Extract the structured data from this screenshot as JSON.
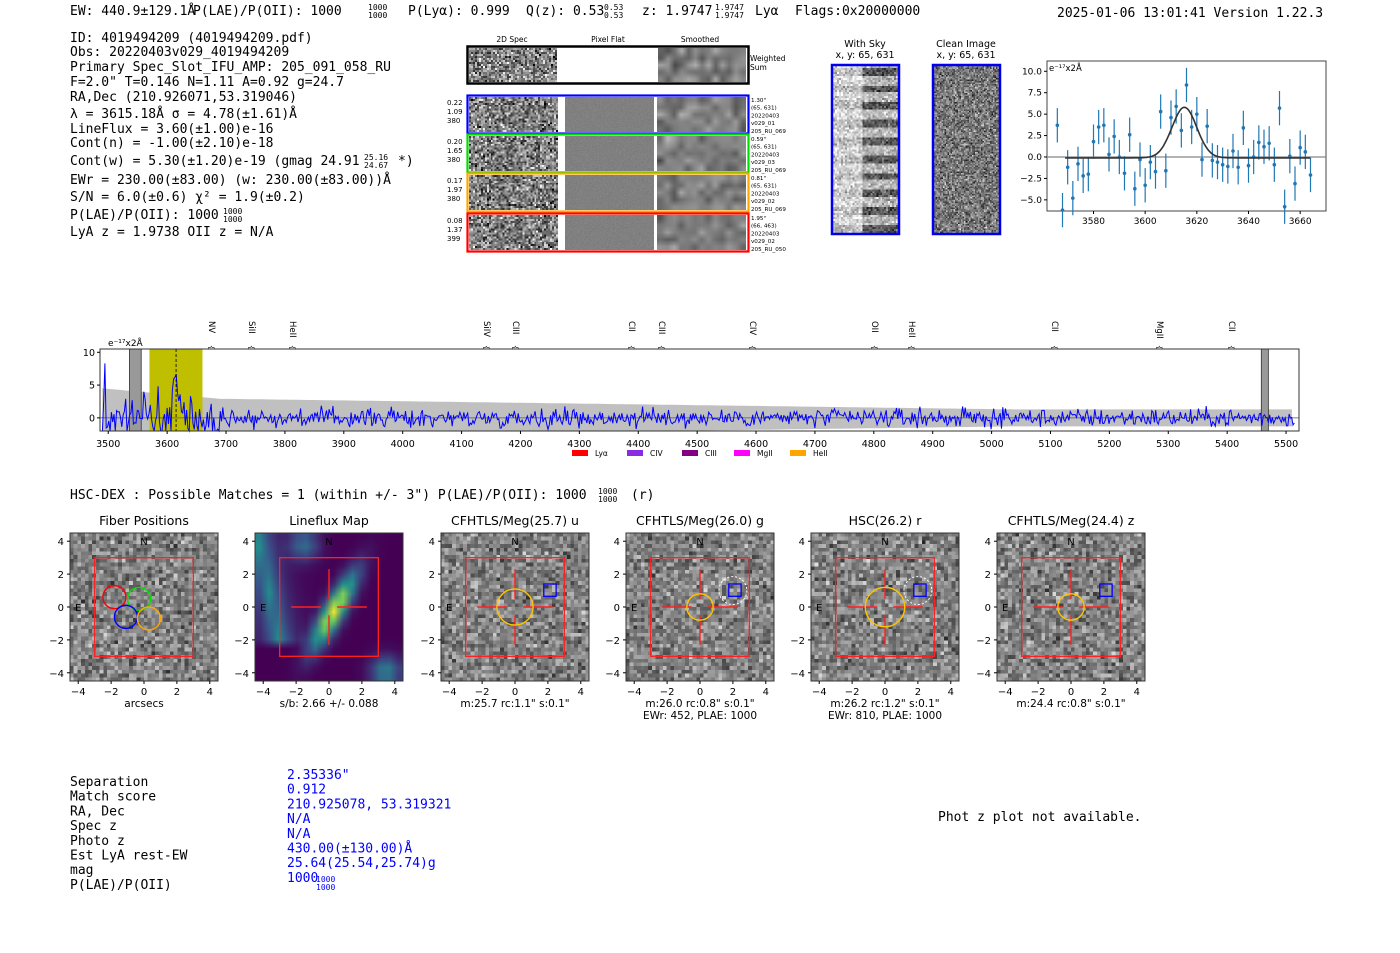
{
  "header": {
    "ew": "EW: 440.9±129.1Å",
    "plae": "P(LAE)/P(OII): 1000",
    "plae_hi": "1000",
    "plae_lo": "1000",
    "plya": "P(Lyα): 0.999",
    "qz": "Q(z): 0.53",
    "qz_hi": "0.53",
    "qz_lo": "0.53",
    "z": "z: 1.9747",
    "z_hi": "1.9747",
    "z_lo": "1.9747",
    "z_line": "Lyα",
    "flags": "Flags:0x20000000",
    "timestamp_version": "2025-01-06 13:01:41  Version 1.22.3"
  },
  "info": {
    "lines": [
      "ID: 4019494209 (4019494209.pdf)",
      "Obs: 20220403v029_4019494209",
      "Primary Spec_Slot_IFU_AMP: 205_091_058_RU",
      "F=2.0\"  T=0.146  N=1.11  A=0.92  g=24.7",
      "RA,Dec (210.926071,53.319046)",
      "λ = 3615.18Å  σ = 4.78(±1.61)Å",
      "LineFlux = 3.60(±1.00)e-16",
      "Cont(n) = -1.00(±2.10)e-18",
      "Cont(w) = 5.30(±1.20)e-19 (gmag 24.91",
      "EWr = 230.00(±83.00) (w: 230.00(±83.00))Å",
      "S/N = 6.0(±0.6)  χ² = 1.9(±0.2)",
      "P(LAE)/P(OII): 1000",
      "LyA z = 1.9738  OII z = N/A"
    ],
    "gmag_hi": "25.16",
    "gmag_lo": "24.67",
    "gmag_suffix": "*)",
    "plae_hi": "1000",
    "plae_lo": "1000"
  },
  "spec2d": {
    "col_titles": [
      "2D Spec",
      "Pixel Flat",
      "Smoothed"
    ],
    "weighted_label": [
      "Weighted",
      "Sum"
    ],
    "rows": [
      {
        "color": "#0000ff",
        "stats": [
          "0.22",
          "1.09",
          "380"
        ],
        "info": [
          "1.30\"",
          "(65, 631)",
          "20220403",
          "v029_01",
          "205_RU_069"
        ]
      },
      {
        "color": "#00dd00",
        "stats": [
          "0.20",
          "1.65",
          "380"
        ],
        "info": [
          "0.59\"",
          "(65, 631)",
          "20220403",
          "v029_03",
          "205_RU_069"
        ]
      },
      {
        "color": "#ffa500",
        "stats": [
          "0.17",
          "1.97",
          "380"
        ],
        "info": [
          "0.81\"",
          "(65, 631)",
          "20220403",
          "v029_02",
          "205_RU_069"
        ]
      },
      {
        "color": "#ff0000",
        "stats": [
          "0.08",
          "1.37",
          "399"
        ],
        "info": [
          "1.95\"",
          "(66, 463)",
          "20220403",
          "v029_02",
          "205_RU_050"
        ]
      }
    ]
  },
  "cutouts_top": {
    "with_sky": [
      "With Sky",
      "x, y: 65, 631"
    ],
    "clean": [
      "Clean Image",
      "x, y: 65, 631"
    ]
  },
  "chart_data": [
    {
      "type": "scatter",
      "title": "",
      "ylabel": "e⁻¹⁷x2Å",
      "xlim": [
        3562,
        3670
      ],
      "ylim": [
        -6.3,
        11.2
      ],
      "xticks": [
        3580,
        3600,
        3620,
        3640,
        3660
      ],
      "yticks": [
        -5.0,
        -2.5,
        0.0,
        2.5,
        5.0,
        7.5,
        10.0
      ],
      "point_color": "#1f77b4",
      "x": [
        3566,
        3568,
        3570,
        3572,
        3574,
        3576,
        3578,
        3580,
        3582,
        3584,
        3586,
        3588,
        3590,
        3592,
        3594,
        3596,
        3598,
        3600,
        3602,
        3604,
        3606,
        3608,
        3610,
        3612,
        3614,
        3616,
        3618,
        3620,
        3622,
        3624,
        3626,
        3628,
        3630,
        3632,
        3634,
        3636,
        3638,
        3640,
        3642,
        3644,
        3646,
        3648,
        3650,
        3652,
        3654,
        3656,
        3658,
        3660,
        3662,
        3664
      ],
      "y": [
        3.7,
        -6.2,
        -1.2,
        -4.8,
        -0.8,
        -2.2,
        -2.0,
        1.8,
        3.5,
        3.7,
        0.3,
        2.4,
        0.0,
        -1.9,
        2.6,
        -3.7,
        -0.3,
        -3.3,
        -0.6,
        -1.7,
        5.3,
        -1.6,
        4.6,
        5.9,
        3.1,
        8.4,
        3.5,
        5.0,
        -0.3,
        3.6,
        -0.4,
        -0.6,
        -0.9,
        -1.1,
        0.7,
        -1.2,
        3.4,
        -1.0,
        0.0,
        1.7,
        1.2,
        1.6,
        -0.9,
        5.7,
        -5.8,
        0.1,
        -3.1,
        1.1,
        0.6,
        -2.1
      ],
      "yerr": 2.0,
      "fit": {
        "type": "gaussian",
        "center": 3615.18,
        "sigma": 4.78,
        "amplitude": 5.9,
        "baseline": -0.1
      }
    },
    {
      "type": "line",
      "title": "",
      "ylabel": "e⁻¹⁷x2Å",
      "xlim": [
        3486,
        5522
      ],
      "ylim": [
        -2,
        10.5
      ],
      "xticks": [
        3500,
        3600,
        3700,
        3800,
        3900,
        4000,
        4100,
        4200,
        4300,
        4400,
        4500,
        4600,
        4700,
        4800,
        4900,
        5000,
        5100,
        5200,
        5300,
        5400,
        5500
      ],
      "yticks": [
        0,
        5,
        10
      ],
      "series_color": "#0000ff",
      "error_band_color": "#c0c0c0",
      "highlight_band": [
        3570,
        3660
      ],
      "line_center": 3615.18,
      "masked_regions": [
        [
          3536,
          3556
        ],
        [
          5458,
          5470
        ]
      ],
      "line_markers": [
        {
          "label": "NV",
          "wave": 3676,
          "color": "#ff0000"
        },
        {
          "label": "SiII",
          "wave": 3744,
          "color": "#ff0000"
        },
        {
          "label": "HeII",
          "wave": 3814,
          "color": "#a040ff"
        },
        {
          "label": "SiIV",
          "wave": 4143,
          "color": "#ff0000"
        },
        {
          "label": "CIII",
          "wave": 4192,
          "color": "#ffa500"
        },
        {
          "label": "CII",
          "wave": 4389,
          "color": "#800080"
        },
        {
          "label": "CIII",
          "wave": 4440,
          "color": "#a040ff"
        },
        {
          "label": "CIV",
          "wave": 4595,
          "color": "#ff0000"
        },
        {
          "label": "OII",
          "wave": 4802,
          "color": "#ff00ff"
        },
        {
          "label": "HeII",
          "wave": 4865,
          "color": "#ff0000"
        },
        {
          "label": "CII",
          "wave": 5108,
          "color": "#ffa500"
        },
        {
          "label": "MgII",
          "wave": 5286,
          "color": "#800080"
        },
        {
          "label": "CII",
          "wave": 5408,
          "color": "#a040ff"
        }
      ],
      "legend": [
        {
          "label": "Lyα",
          "color": "#ff0000"
        },
        {
          "label": "CIV",
          "color": "#8a2be2"
        },
        {
          "label": "CIII",
          "color": "#800080"
        },
        {
          "label": "MgII",
          "color": "#ff00ff"
        },
        {
          "label": "HeII",
          "color": "#ffa500"
        }
      ],
      "legend_position": "bottom"
    }
  ],
  "matches": {
    "title": "HSC-DEX : Possible Matches = 1 (within +/- 3\")  P(LAE)/P(OII): 1000",
    "plae_hi": "1000",
    "plae_lo": "1000",
    "suffix": "(r)"
  },
  "panels": [
    {
      "title": "Fiber Positions",
      "sub": [
        "arcsecs"
      ]
    },
    {
      "title": "Lineflux Map",
      "sub": [
        "s/b: 2.66 +/- 0.088"
      ]
    },
    {
      "title": "CFHTLS/Meg(25.7) u",
      "sub": [
        "m:25.7 rc:1.1\"  s:0.1\""
      ]
    },
    {
      "title": "CFHTLS/Meg(26.0) g",
      "sub": [
        "m:26.0 rc:0.8\"  s:0.1\"",
        "EWr: 452, PLAE: 1000"
      ]
    },
    {
      "title": "HSC(26.2) r",
      "sub": [
        "m:26.2 rc:1.2\"  s:0.1\"",
        "EWr: 810, PLAE: 1000"
      ]
    },
    {
      "title": "CFHTLS/Meg(24.4) z",
      "sub": [
        "m:24.4 rc:0.8\"  s:0.1\""
      ]
    }
  ],
  "panel_axes": {
    "ticks": [
      -4,
      -2,
      0,
      2,
      4
    ],
    "north": "N",
    "east": "E"
  },
  "match_table": {
    "labels": [
      "Separation",
      "Match score",
      "RA, Dec",
      "Spec z",
      "Photo z",
      "Est LyA rest-EW",
      "mag",
      "P(LAE)/P(OII)"
    ],
    "values": [
      "2.35336\"",
      "0.912",
      "210.925078, 53.319321",
      "N/A",
      "N/A",
      "430.00(±130.00)Å",
      "25.64(25.54,25.74)g",
      "1000"
    ],
    "plae_hi": "1000",
    "plae_lo": "1000"
  },
  "photz_note": "Phot z plot not available."
}
